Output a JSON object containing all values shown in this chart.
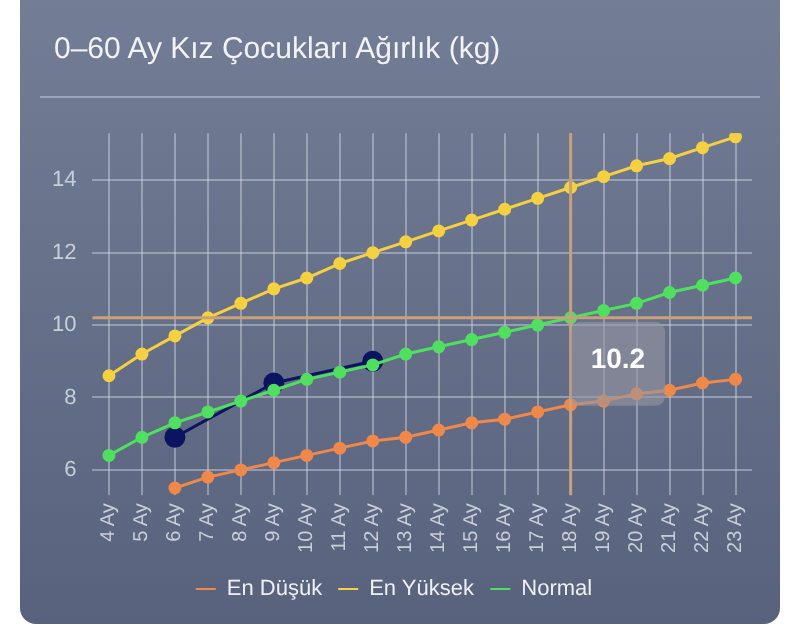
{
  "chart_data": {
    "type": "line",
    "title": "0–60 Ay Kız Çocukları Ağırlık (kg)",
    "categories": [
      "4 Ay",
      "5 Ay",
      "6 Ay",
      "7 Ay",
      "8 Ay",
      "9 Ay",
      "10 Ay",
      "11 Ay",
      "12 Ay",
      "13 Ay",
      "14 Ay",
      "15 Ay",
      "16 Ay",
      "17 Ay",
      "18 Ay",
      "19 Ay",
      "20 Ay",
      "21 Ay",
      "22 Ay",
      "23 Ay"
    ],
    "series": [
      {
        "name": "En Düşük",
        "color": "#f0884a",
        "values": [
          null,
          null,
          5.5,
          5.8,
          6.0,
          6.2,
          6.4,
          6.6,
          6.8,
          6.9,
          7.1,
          7.3,
          7.4,
          7.6,
          7.8,
          7.9,
          8.1,
          8.2,
          8.4,
          8.5
        ]
      },
      {
        "name": "En Yüksek",
        "color": "#f5d040",
        "values": [
          8.6,
          9.2,
          9.7,
          10.2,
          10.6,
          11.0,
          11.3,
          11.7,
          12.0,
          12.3,
          12.6,
          12.9,
          13.2,
          13.5,
          13.8,
          14.1,
          14.4,
          14.6,
          14.9,
          15.2
        ]
      },
      {
        "name": "Normal",
        "color": "#50e060",
        "values": [
          6.4,
          6.9,
          7.3,
          7.6,
          7.9,
          8.2,
          8.5,
          8.7,
          8.9,
          9.2,
          9.4,
          9.6,
          9.8,
          10.0,
          10.2,
          10.4,
          10.6,
          10.9,
          11.1,
          11.3
        ]
      },
      {
        "color": "#0a1460",
        "values": [
          null,
          null,
          6.9,
          null,
          null,
          8.4,
          null,
          null,
          9.0,
          null,
          null,
          null,
          null,
          null,
          null,
          null,
          null,
          null,
          null,
          null
        ]
      }
    ],
    "ylim": [
      5.3,
      15.3
    ],
    "yticks": [
      6,
      8,
      10,
      12,
      14
    ],
    "grid": true,
    "legend": "bottom",
    "marker": "circle",
    "line_style": "solid",
    "ref_lines": [
      {
        "axis": "x",
        "value": "18 Ay",
        "color": "#c8a07a"
      },
      {
        "axis": "y",
        "value": 10.2,
        "color": "#c8a07a"
      }
    ],
    "annotations": [
      {
        "text": "10.2",
        "x": "18 Ay",
        "y": 10.2
      }
    ]
  }
}
